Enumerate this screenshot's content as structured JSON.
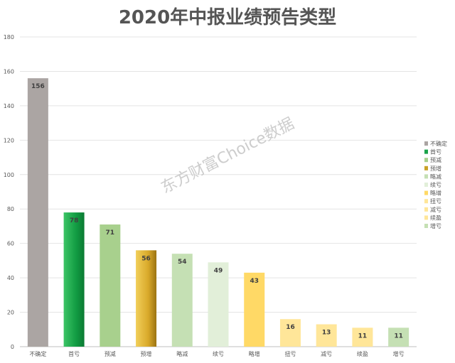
{
  "chart_data": {
    "type": "bar",
    "title": "2020年中报业绩预告类型",
    "categories": [
      "不确定",
      "首亏",
      "预减",
      "预增",
      "略减",
      "续亏",
      "略增",
      "扭亏",
      "减亏",
      "续盈",
      "增亏"
    ],
    "values": [
      156,
      78,
      71,
      56,
      54,
      49,
      43,
      16,
      13,
      11,
      11
    ],
    "ylim": [
      0,
      180
    ],
    "yticks": [
      0,
      20,
      40,
      60,
      80,
      100,
      120,
      140,
      160,
      180
    ],
    "grid": true,
    "legend_position": "right",
    "xlabel": "",
    "ylabel": ""
  },
  "colors": {
    "不确定": "#aba5a3",
    "首亏": "#1aa34a",
    "预减": "#a8d08d",
    "预增": "#c9a227",
    "略减": "#c5e0b4",
    "续亏": "#e2efd9",
    "略增": "#ffd966",
    "扭亏": "#ffe699",
    "减亏": "#ffe699",
    "续盈": "#ffe699",
    "增亏": "#c5e0b4"
  },
  "watermark": "东方财富Choice数据"
}
